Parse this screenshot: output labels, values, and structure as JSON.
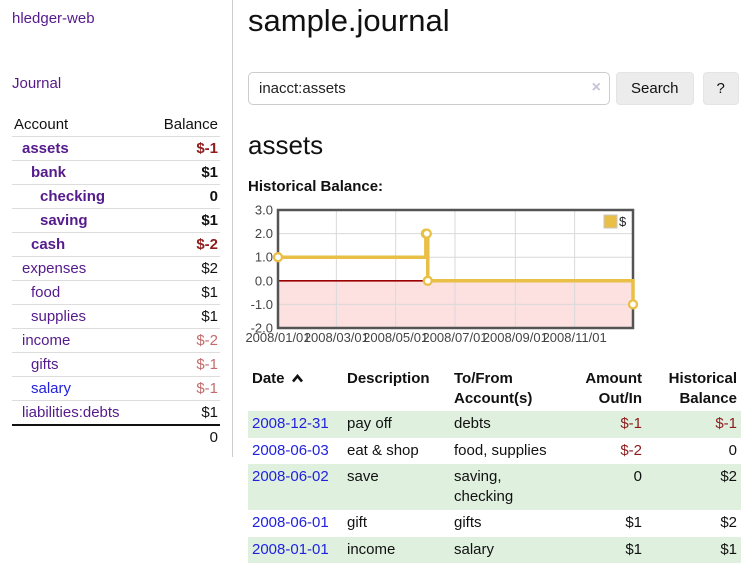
{
  "colors": {
    "link_purple": "#551a8b",
    "link_blue": "#2222dd",
    "negative_strong": "#8f1b1b",
    "negative_soft": "#c46b6b",
    "row_shade_green": "#dff0df",
    "chart_gold": "#e9bf45",
    "chart_negative_fill": "#fde1e1",
    "chart_zero_line": "#9d0000",
    "chart_border": "#545454",
    "chart_grid": "#d9d9d9"
  },
  "sidebar": {
    "brand": "hledger-web",
    "journal_link": "Journal",
    "accounts": {
      "headers": [
        "Account",
        "Balance"
      ],
      "rows": [
        {
          "name": "assets",
          "level": 1,
          "bold": true,
          "balance": "$-1",
          "balance_tone": "negative-strong",
          "link_tone": "purple"
        },
        {
          "name": "bank",
          "level": 2,
          "bold": true,
          "balance": "$1",
          "balance_tone": "normal",
          "link_tone": "purple"
        },
        {
          "name": "checking",
          "level": 3,
          "bold": true,
          "balance": "0",
          "balance_tone": "normal",
          "link_tone": "purple"
        },
        {
          "name": "saving",
          "level": 3,
          "bold": true,
          "balance": "$1",
          "balance_tone": "normal",
          "link_tone": "purple"
        },
        {
          "name": "cash",
          "level": 2,
          "bold": true,
          "balance": "$-2",
          "balance_tone": "negative-strong",
          "link_tone": "purple"
        },
        {
          "name": "expenses",
          "level": 1,
          "bold": false,
          "balance": "$2",
          "balance_tone": "normal",
          "link_tone": "purple"
        },
        {
          "name": "food",
          "level": 2,
          "bold": false,
          "balance": "$1",
          "balance_tone": "normal",
          "link_tone": "purple"
        },
        {
          "name": "supplies",
          "level": 2,
          "bold": false,
          "balance": "$1",
          "balance_tone": "normal",
          "link_tone": "purple"
        },
        {
          "name": "income",
          "level": 1,
          "bold": false,
          "balance": "$-2",
          "balance_tone": "negative-soft",
          "link_tone": "purple"
        },
        {
          "name": "gifts",
          "level": 2,
          "bold": false,
          "balance": "$-1",
          "balance_tone": "negative-soft",
          "link_tone": "purple"
        },
        {
          "name": "salary",
          "level": 2,
          "bold": false,
          "balance": "$-1",
          "balance_tone": "negative-soft",
          "link_tone": "blue"
        },
        {
          "name": "liabilities:debts",
          "level": 1,
          "bold": false,
          "balance": "$1",
          "balance_tone": "normal",
          "link_tone": "purple"
        }
      ],
      "total": "0"
    }
  },
  "header": {
    "title": "sample.journal"
  },
  "search": {
    "value": "inacct:assets",
    "clear_icon": "×",
    "search_label": "Search",
    "help_label": "?"
  },
  "content": {
    "account_heading": "assets",
    "chart_label": "Historical Balance:"
  },
  "chart_data": {
    "type": "line",
    "step": true,
    "title": "Historical Balance",
    "series": [
      {
        "name": "$",
        "color": "#e9bf45",
        "points": [
          [
            "2008-01-01",
            1.0
          ],
          [
            "2008-06-01",
            2.0
          ],
          [
            "2008-06-02",
            2.0
          ],
          [
            "2008-06-03",
            0.0
          ],
          [
            "2008-12-31",
            -1.0
          ]
        ]
      }
    ],
    "x_ticks": [
      "2008/01/01",
      "2008/03/01",
      "2008/05/01",
      "2008/07/01",
      "2008/09/01",
      "2008/11/01"
    ],
    "y_ticks": [
      3.0,
      2.0,
      1.0,
      0.0,
      -1.0,
      -2.0
    ],
    "xlim": [
      "2008-01-01",
      "2008-12-31"
    ],
    "ylim": [
      -2.0,
      3.0
    ],
    "grid": true,
    "legend_position": "top-right",
    "negative_region_color": "#fde1e1",
    "zero_line_color": "#9d0000"
  },
  "register": {
    "headers": [
      {
        "text": "Date",
        "sorted": "asc"
      },
      {
        "text": "Description"
      },
      {
        "text": "To/From\nAccount(s)"
      },
      {
        "text": "Amount\nOut/In"
      },
      {
        "text": "Historical\nBalance"
      }
    ],
    "rows": [
      {
        "date": "2008-12-31",
        "description": "pay off",
        "accounts": "debts",
        "amount": "$-1",
        "amount_tone": "negative",
        "balance": "$-1",
        "balance_tone": "negative",
        "shaded": true
      },
      {
        "date": "2008-06-03",
        "description": "eat & shop",
        "accounts": "food, supplies",
        "amount": "$-2",
        "amount_tone": "negative",
        "balance": "0",
        "balance_tone": "normal",
        "shaded": false
      },
      {
        "date": "2008-06-02",
        "description": "save",
        "accounts": "saving,\nchecking",
        "amount": "0",
        "amount_tone": "normal",
        "balance": "$2",
        "balance_tone": "normal",
        "shaded": true
      },
      {
        "date": "2008-06-01",
        "description": "gift",
        "accounts": "gifts",
        "amount": "$1",
        "amount_tone": "normal",
        "balance": "$2",
        "balance_tone": "normal",
        "shaded": false
      },
      {
        "date": "2008-01-01",
        "description": "income",
        "accounts": "salary",
        "amount": "$1",
        "amount_tone": "normal",
        "balance": "$1",
        "balance_tone": "normal",
        "shaded": true
      }
    ]
  }
}
